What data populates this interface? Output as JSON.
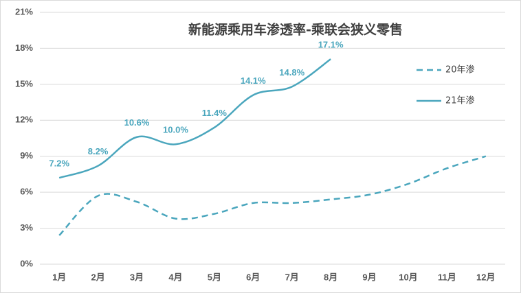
{
  "chart_data": {
    "type": "line",
    "title": "新能源乘用车渗透率-乘联会狭义零售",
    "categories": [
      "1月",
      "2月",
      "3月",
      "4月",
      "5月",
      "6月",
      "7月",
      "8月",
      "9月",
      "10月",
      "11月",
      "12月"
    ],
    "series": [
      {
        "name": "20年渗",
        "color": "#4aa6bd",
        "dash": true,
        "values": [
          2.4,
          5.7,
          5.2,
          3.8,
          4.2,
          5.1,
          5.1,
          5.4,
          5.8,
          6.7,
          8.0,
          9.0
        ]
      },
      {
        "name": "21年渗",
        "color": "#4aa6bd",
        "dash": false,
        "values": [
          7.2,
          8.2,
          10.6,
          10.0,
          11.4,
          14.1,
          14.8,
          17.1,
          null,
          null,
          null,
          null
        ],
        "value_labels": [
          "7.2%",
          "8.2%",
          "10.6%",
          "10.0%",
          "11.4%",
          "14.1%",
          "14.8%",
          "17.1%",
          null,
          null,
          null,
          null
        ]
      }
    ],
    "ylim": [
      0,
      21
    ],
    "yticks": [
      {
        "value": 0,
        "label": "0%"
      },
      {
        "value": 3,
        "label": "3%"
      },
      {
        "value": 6,
        "label": "6%"
      },
      {
        "value": 9,
        "label": "9%"
      },
      {
        "value": 12,
        "label": "12%"
      },
      {
        "value": 15,
        "label": "15%"
      },
      {
        "value": 18,
        "label": "18%"
      },
      {
        "value": 21,
        "label": "21%"
      }
    ],
    "grid": true,
    "legend": "right"
  }
}
